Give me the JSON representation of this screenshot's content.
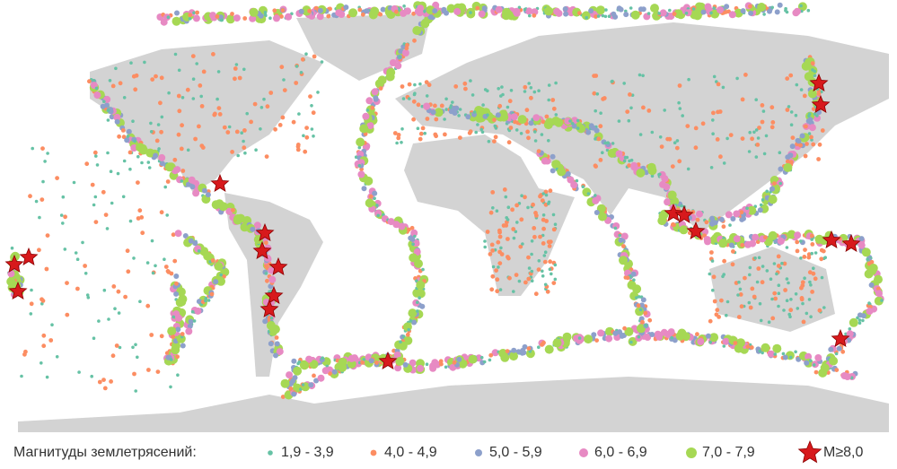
{
  "legend": {
    "title": "Магнитуды землетрясений:",
    "items": [
      {
        "label": "1,9 - 3,9",
        "color": "#66c2a5",
        "marker": "dot"
      },
      {
        "label": "4,0 - 4,9",
        "color": "#fc8d62",
        "marker": "dot"
      },
      {
        "label": "5,0 - 5,9",
        "color": "#8da0cb",
        "marker": "dot"
      },
      {
        "label": "6,0 - 6,9",
        "color": "#e78ac3",
        "marker": "dot"
      },
      {
        "label": "7,0 - 7,9",
        "color": "#a6d854",
        "marker": "dot"
      },
      {
        "label": "M≥8,0",
        "color": "#d7191c",
        "marker": "star"
      }
    ]
  }
}
